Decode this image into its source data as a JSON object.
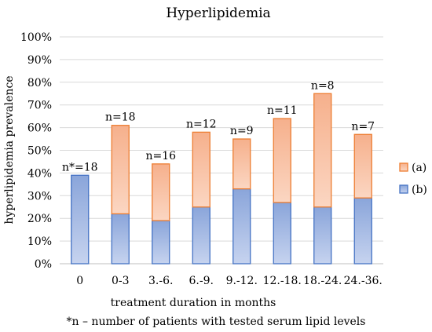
{
  "chart_data": {
    "type": "bar",
    "stacked": true,
    "title": "Hyperlipidemia",
    "xlabel": "treatment duration in months",
    "ylabel": "hyperlipidemia prevalence",
    "ylim": [
      0,
      100
    ],
    "yticks": [
      "0%",
      "10%",
      "20%",
      "30%",
      "40%",
      "50%",
      "60%",
      "70%",
      "80%",
      "90%",
      "100%"
    ],
    "grid": true,
    "legend": "right",
    "categories": [
      "0",
      "0-3",
      "3.-6.",
      "6.-9.",
      "9.-12.",
      "12.-18.",
      "18.-24.",
      "24.-36."
    ],
    "bar_labels": [
      "n*=18",
      "n=18",
      "n=16",
      "n=12",
      "n=9",
      "n=11",
      "n=8",
      "n=7"
    ],
    "series": [
      {
        "name": "(b)",
        "values": [
          39,
          22,
          19,
          25,
          33,
          27,
          25,
          29
        ],
        "color": "#8fa9db",
        "edge": "#4472c4"
      },
      {
        "name": "(a)",
        "values": [
          0,
          39,
          25,
          33,
          22,
          37,
          50,
          28
        ],
        "color": "#f8b997",
        "edge": "#ed7d31"
      }
    ],
    "footnote": "*n – number of patients with tested serum lipid levels"
  }
}
